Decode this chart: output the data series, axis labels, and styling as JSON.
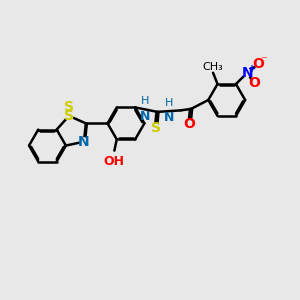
{
  "background_color": "#e8e8e8",
  "atom_colors": {
    "C": "#000000",
    "N": "#0066aa",
    "O": "#ff0000",
    "S": "#cccc00",
    "H": "#888888",
    "Nplus": "#0000ff"
  },
  "bond_color": "#000000",
  "bond_width": 1.8,
  "font_size": 9
}
